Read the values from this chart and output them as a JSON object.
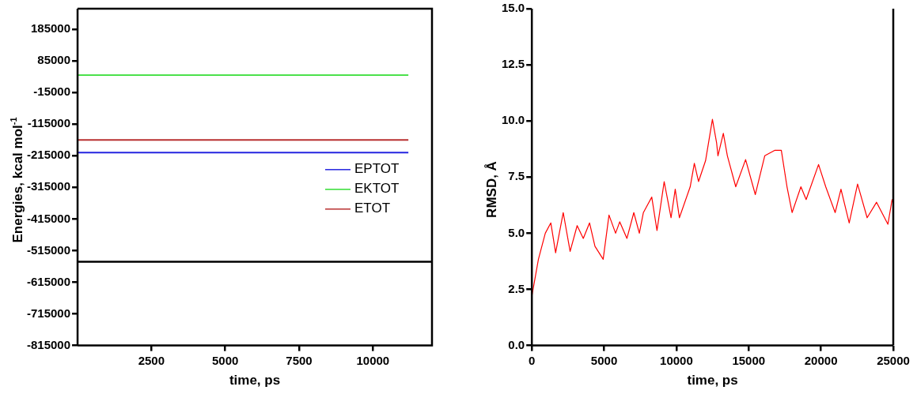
{
  "chart_data": [
    {
      "type": "line",
      "xlabel": "time, ps",
      "ylabel": "Energies, kcal mol$^{-1}$",
      "xlim": [
        0,
        12000
      ],
      "xticks": [
        2500,
        5000,
        7500,
        10000
      ],
      "ylim": [
        -815000,
        250000
      ],
      "yticks": [
        185000,
        85000,
        -15000,
        -115000,
        -215000,
        -315000,
        -415000,
        -515000,
        -615000,
        -715000,
        -815000
      ],
      "ref_lines": [
        {
          "axis": "y",
          "value": -550000,
          "color": "#000000"
        }
      ],
      "grid": false,
      "legend": "right",
      "marker": "none",
      "line_style": "solid",
      "series": [
        {
          "name": "EPTOT",
          "color": "#2424e0",
          "x": [
            0,
            11200
          ],
          "values": [
            -205000,
            -205000
          ]
        },
        {
          "name": "EKTOT",
          "color": "#33dd33",
          "x": [
            0,
            11200
          ],
          "values": [
            40000,
            40000
          ]
        },
        {
          "name": "ETOT",
          "color": "#b83030",
          "x": [
            0,
            11200
          ],
          "values": [
            -165000,
            -165000
          ]
        }
      ]
    },
    {
      "type": "line",
      "xlabel": "time, ps",
      "ylabel": "RMSD, Å",
      "xlim": [
        0,
        25000
      ],
      "xticks": [
        0,
        5000,
        10000,
        15000,
        20000,
        25000
      ],
      "ylim": [
        0,
        15
      ],
      "yticks": [
        {
          "value": 0,
          "label": "0.0"
        },
        {
          "value": 2.5,
          "label": "2.5"
        },
        {
          "value": 5,
          "label": "5.0"
        },
        {
          "value": 7.5,
          "label": "7.5"
        },
        {
          "value": 10,
          "label": "10.0"
        },
        {
          "value": 12.5,
          "label": "12.5"
        },
        {
          "value": 15,
          "label": "15.0"
        }
      ],
      "grid": false,
      "legend": false,
      "marker": "none",
      "line_style": "solid",
      "series": [
        {
          "color": "#ff0000",
          "x": [
            0,
            455,
            931,
            1314,
            1645,
            2172,
            2648,
            3134,
            3558,
            3993,
            4365,
            4934,
            5337,
            5792,
            6081,
            6578,
            7054,
            7436,
            7716,
            8295,
            8657,
            9154,
            9630,
            9919,
            10206,
            10954,
            11240,
            11530,
            12016,
            12491,
            12780,
            12873,
            13246,
            13525,
            14104,
            14786,
            15458,
            16110,
            16792,
            17257,
            17650,
            18002,
            18612,
            18974,
            19832,
            20328,
            20980,
            21383,
            21952,
            22531,
            23193,
            23844,
            24630,
            24919,
            25000
          ],
          "values": [
            2.2,
            3.84,
            5.0,
            5.46,
            4.13,
            5.92,
            4.19,
            5.34,
            4.77,
            5.46,
            4.42,
            3.84,
            5.81,
            5.0,
            5.51,
            4.77,
            5.92,
            5.0,
            5.92,
            6.61,
            5.12,
            7.3,
            5.69,
            6.96,
            5.69,
            7.07,
            8.11,
            7.3,
            8.23,
            10.07,
            9.03,
            8.45,
            9.45,
            8.45,
            7.07,
            8.28,
            6.72,
            8.45,
            8.69,
            8.69,
            7.07,
            5.92,
            7.07,
            6.5,
            8.06,
            7.07,
            5.92,
            6.96,
            5.46,
            7.19,
            5.69,
            6.38,
            5.4,
            6.5,
            6.3
          ]
        }
      ]
    }
  ]
}
